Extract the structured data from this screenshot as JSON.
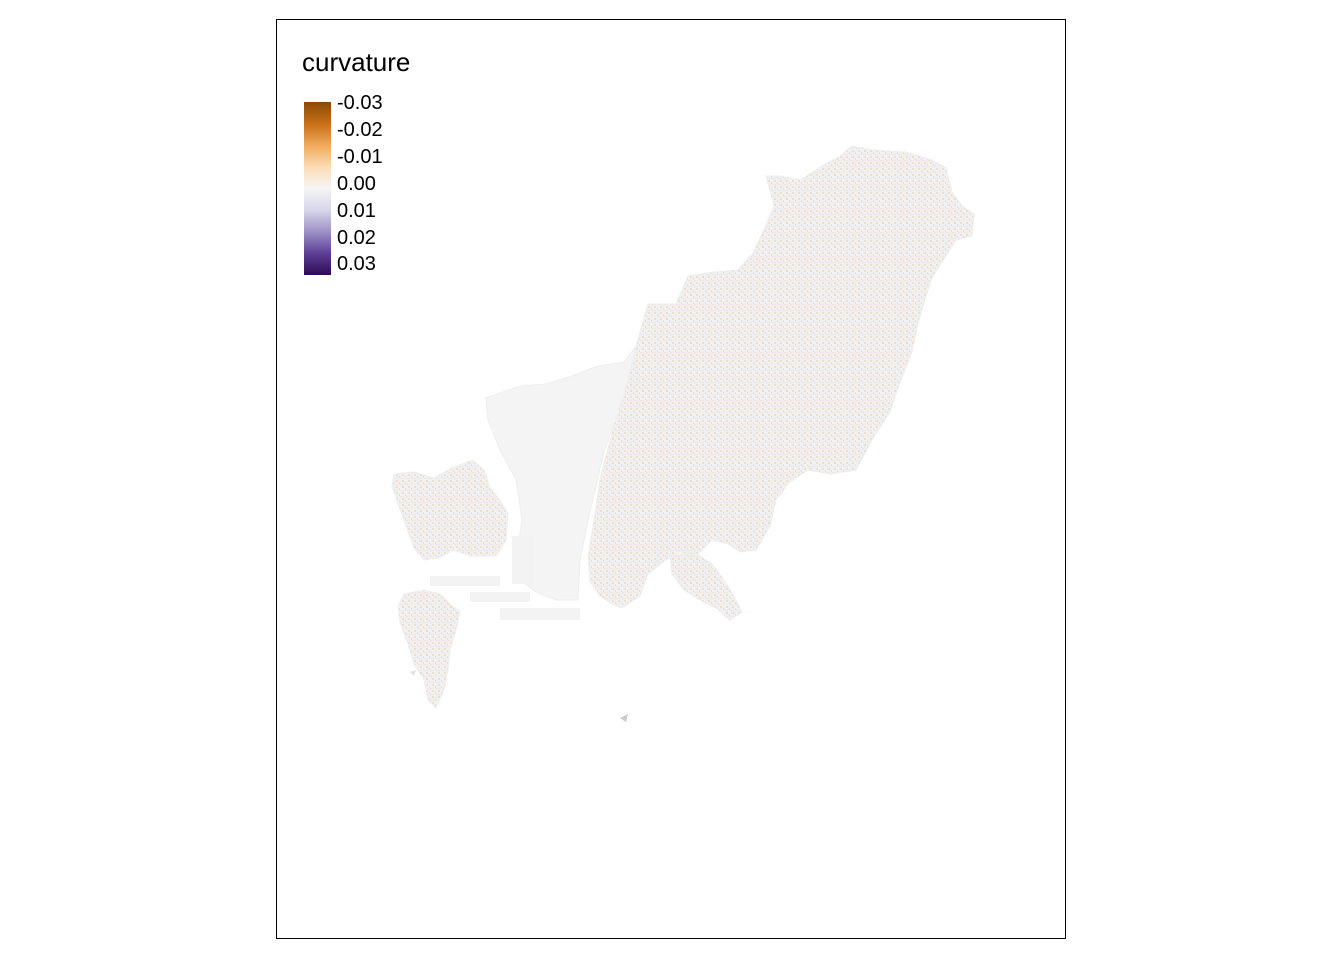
{
  "legend": {
    "title": "curvature",
    "labels": [
      "-0.03",
      "-0.02",
      "-0.01",
      "0.00",
      "0.01",
      "0.02",
      "0.03"
    ],
    "colors": [
      "#8a4a06",
      "#c76f16",
      "#f0a95a",
      "#fbdcb5",
      "#f5f5f5",
      "#d6d5ea",
      "#9c92c6",
      "#5d3f97",
      "#2d0b55"
    ]
  },
  "map": {
    "fill_base": "#f2f2f2",
    "fill_texture_warm": "#f0d7bc",
    "fill_texture_cool": "#dcdcec"
  }
}
